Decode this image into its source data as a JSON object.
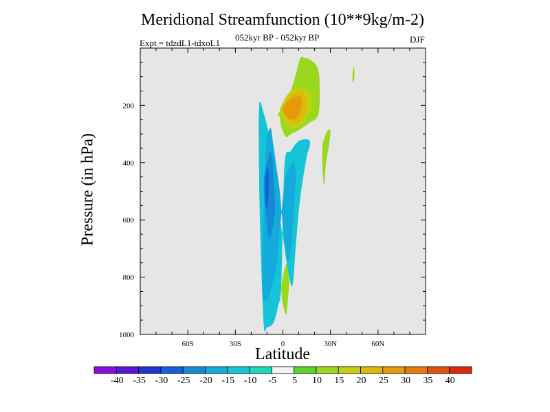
{
  "chart_data": {
    "type": "contour",
    "title": "Meridional Streamfunction (10**9kg/m-2)",
    "subtitle": "052kyr BP - 052kyr BP",
    "experiment": "Expt = tdzdL1-tdxoL1",
    "season": "DJF",
    "xlabel": "Latitude",
    "ylabel": "Pressure (in hPa)",
    "xlim": [
      -90,
      90
    ],
    "ylim": [
      1000,
      0
    ],
    "x_ticks": [
      {
        "value": -60,
        "label": "60S"
      },
      {
        "value": -30,
        "label": "30S"
      },
      {
        "value": 0,
        "label": "0"
      },
      {
        "value": 30,
        "label": "30N"
      },
      {
        "value": 60,
        "label": "60N"
      }
    ],
    "y_ticks": [
      {
        "value": 200,
        "label": "200"
      },
      {
        "value": 400,
        "label": "400"
      },
      {
        "value": 600,
        "label": "600"
      },
      {
        "value": 800,
        "label": "800"
      },
      {
        "value": 1000,
        "label": "1000"
      }
    ],
    "colorbar": {
      "labels": [
        "-40",
        "-35",
        "-30",
        "-25",
        "-20",
        "-15",
        "-10",
        "-5",
        "5",
        "10",
        "15",
        "20",
        "25",
        "30",
        "35",
        "40"
      ],
      "colors": [
        "#8a0ee0",
        "#5a16d8",
        "#2234d2",
        "#1260de",
        "#148ad6",
        "#13aadc",
        "#16c4d8",
        "#18dcb4",
        "#f2f2f2",
        "#5ad62a",
        "#9ad81e",
        "#c2d012",
        "#dfb80a",
        "#e69a0a",
        "#e47a0c",
        "#e05010",
        "#da2a0c"
      ]
    },
    "regions": [
      {
        "name": "tropical-upper-positive",
        "level": 10,
        "lat": [
          -3,
          3,
          8,
          11,
          14,
          17,
          21,
          23,
          23,
          21,
          17,
          13,
          9,
          5,
          2,
          -1,
          -2
        ],
        "pres": [
          230,
          180,
          95,
          35,
          35,
          40,
          60,
          100,
          210,
          245,
          260,
          275,
          290,
          300,
          310,
          275,
          240
        ]
      },
      {
        "name": "upper-positive-core-15",
        "level": 15,
        "lat": [
          -2,
          1,
          5,
          10,
          15,
          18,
          18,
          15,
          11,
          7,
          3,
          0
        ],
        "pres": [
          220,
          180,
          150,
          140,
          145,
          165,
          210,
          245,
          270,
          280,
          270,
          245
        ]
      },
      {
        "name": "upper-positive-core-20",
        "level": 20,
        "lat": [
          0,
          3,
          7,
          11,
          14,
          15,
          13,
          10,
          6,
          3,
          1
        ],
        "pres": [
          215,
          180,
          160,
          150,
          165,
          200,
          235,
          260,
          265,
          250,
          235
        ]
      },
      {
        "name": "upper-positive-core-25",
        "level": 25,
        "lat": [
          0,
          3,
          7,
          11,
          12,
          11,
          8,
          5,
          2,
          1
        ],
        "pres": [
          210,
          185,
          170,
          170,
          185,
          220,
          245,
          250,
          240,
          225
        ]
      },
      {
        "name": "nh-subtropical-positive",
        "level": 10,
        "lat": [
          25,
          28,
          30,
          29,
          27,
          26,
          25
        ],
        "pres": [
          340,
          290,
          290,
          340,
          410,
          480,
          420
        ]
      },
      {
        "name": "high-lat-positive",
        "level": 10,
        "lat": [
          44,
          45,
          45,
          44
        ],
        "pres": [
          85,
          65,
          105,
          120
        ]
      },
      {
        "name": "lower-positive",
        "level": 10,
        "lat": [
          -1,
          2,
          4,
          3,
          2,
          0,
          -1
        ],
        "pres": [
          830,
          755,
          800,
          890,
          930,
          895,
          850
        ]
      },
      {
        "name": "negative-cell-outer",
        "level": -10,
        "lat": [
          -12,
          -10,
          -6,
          -3,
          -1,
          1,
          5,
          10,
          16,
          17,
          15,
          12,
          10,
          8,
          6,
          3,
          0,
          -3,
          -6,
          -9,
          -12,
          -15,
          -15,
          -14
        ],
        "pres": [
          970,
          975,
          960,
          900,
          820,
          410,
          360,
          325,
          320,
          340,
          380,
          480,
          570,
          700,
          830,
          770,
          660,
          560,
          420,
          300,
          230,
          200,
          450,
          700
        ]
      },
      {
        "name": "negative-cell-mid",
        "level": -15,
        "lat": [
          -13,
          -11,
          -9,
          -7,
          -4,
          -2,
          1,
          4,
          7,
          8,
          7,
          5,
          3,
          0,
          -2,
          -4,
          -6,
          -8,
          -11
        ],
        "pres": [
          820,
          880,
          870,
          830,
          760,
          640,
          480,
          420,
          400,
          460,
          560,
          700,
          740,
          620,
          500,
          420,
          340,
          280,
          380
        ]
      },
      {
        "name": "negative-cell-inner",
        "level": -20,
        "lat": [
          -12,
          -9,
          -7,
          -6,
          -5,
          -7,
          -9,
          -11
        ],
        "pres": [
          460,
          380,
          370,
          450,
          560,
          640,
          660,
          560
        ]
      },
      {
        "name": "negative-cell-core",
        "level": -25,
        "lat": [
          -11,
          -10,
          -9,
          -9,
          -10,
          -11
        ],
        "pres": [
          460,
          420,
          430,
          500,
          560,
          520
        ]
      },
      {
        "name": "negative-cell-core-right",
        "level": -15,
        "lat": [
          3,
          5,
          7,
          8,
          7,
          5,
          3
        ],
        "pres": [
          440,
          415,
          420,
          460,
          510,
          530,
          490
        ]
      }
    ]
  }
}
